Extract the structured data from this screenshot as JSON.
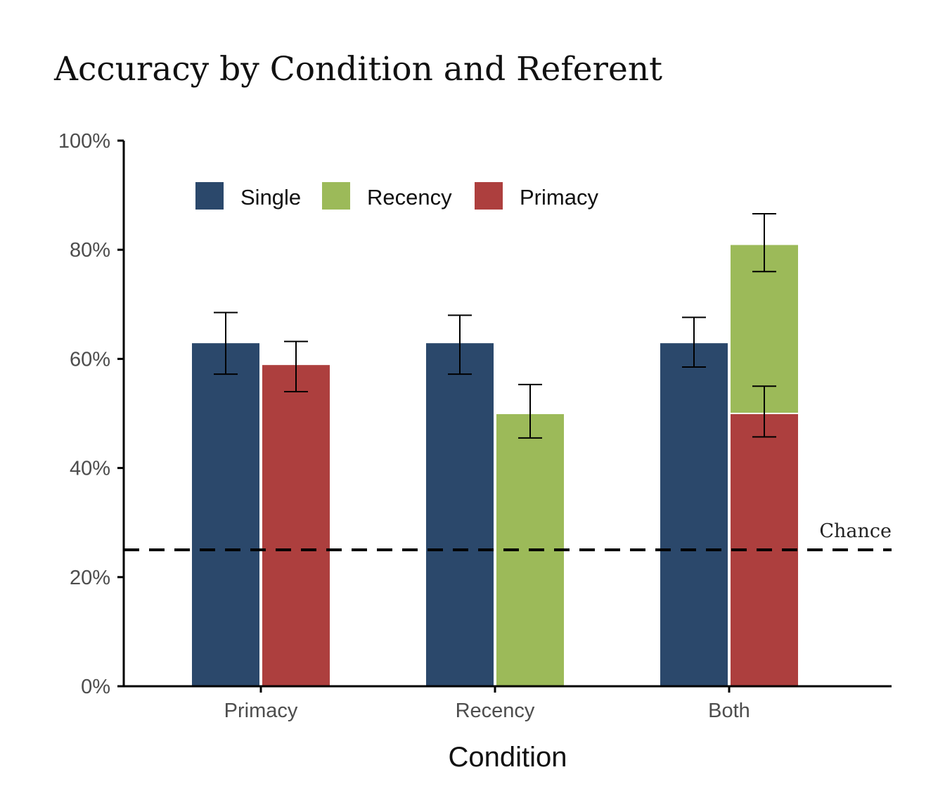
{
  "chart_data": {
    "type": "bar",
    "title": "Accuracy by Condition and Referent",
    "xlabel": "Condition",
    "ylabel": "",
    "ylim": [
      0,
      100
    ],
    "yticks": [
      "0%",
      "20%",
      "40%",
      "60%",
      "80%",
      "100%"
    ],
    "ytick_values": [
      0,
      20,
      40,
      60,
      80,
      100
    ],
    "categories": [
      "Primacy",
      "Recency",
      "Both"
    ],
    "legend_position": "top-left (inside plot)",
    "series": [
      {
        "name": "Single",
        "color": "#2b486b"
      },
      {
        "name": "Recency",
        "color": "#9cba59"
      },
      {
        "name": "Primacy",
        "color": "#ad3f3e"
      }
    ],
    "bars": [
      {
        "category": "Primacy",
        "series": "Single",
        "value": 63,
        "err_low": 57.2,
        "err_high": 68.5
      },
      {
        "category": "Primacy",
        "series": "Primacy",
        "value": 59,
        "err_low": 54,
        "err_high": 63.2
      },
      {
        "category": "Recency",
        "series": "Single",
        "value": 63,
        "err_low": 57.2,
        "err_high": 68
      },
      {
        "category": "Recency",
        "series": "Recency",
        "value": 50,
        "err_low": 45.5,
        "err_high": 55.3
      },
      {
        "category": "Both",
        "series": "Single",
        "value": 63,
        "err_low": 58.5,
        "err_high": 67.6
      },
      {
        "category": "Both",
        "series": "Recency",
        "value": 81,
        "err_low": 76,
        "err_high": 86.6
      },
      {
        "category": "Both",
        "series": "Primacy",
        "value": 50,
        "err_low": 45.7,
        "err_high": 55
      }
    ],
    "reference_line": {
      "value": 25,
      "label": "Chance",
      "style": "dashed"
    },
    "grid": false
  }
}
